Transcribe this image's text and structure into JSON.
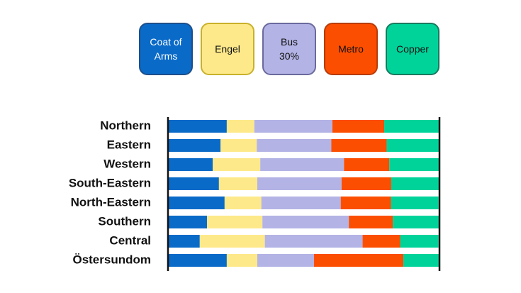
{
  "chart_data": {
    "type": "stacked_barh",
    "categories": [
      "Northern",
      "Eastern",
      "Western",
      "South-Eastern",
      "North-Eastern",
      "Southern",
      "Central",
      "Östersundom"
    ],
    "series": [
      {
        "name": "Coat of\nArms",
        "color": "#0a6ac8",
        "values": [
          21.5,
          19.2,
          16.3,
          18.6,
          20.7,
          14.2,
          11.5,
          21.5
        ]
      },
      {
        "name": "Engel",
        "color": "#fde98a",
        "values": [
          10.2,
          13.4,
          17.6,
          14.2,
          13.6,
          20.5,
          24.1,
          11.3
        ]
      },
      {
        "name": "Bus\n30%",
        "color": "#b3b3e5",
        "values": [
          28.9,
          27.6,
          31.0,
          31.2,
          29.4,
          32.0,
          36.2,
          21.0
        ]
      },
      {
        "name": "Metro",
        "color": "#fc4e00",
        "values": [
          19.2,
          20.5,
          16.8,
          18.4,
          18.6,
          16.3,
          13.9,
          33.1
        ]
      },
      {
        "name": "Copper",
        "color": "#00d39a",
        "values": [
          20.2,
          19.4,
          18.4,
          17.6,
          17.6,
          17.1,
          14.2,
          13.1
        ]
      }
    ],
    "xlim": [
      0,
      100
    ]
  }
}
